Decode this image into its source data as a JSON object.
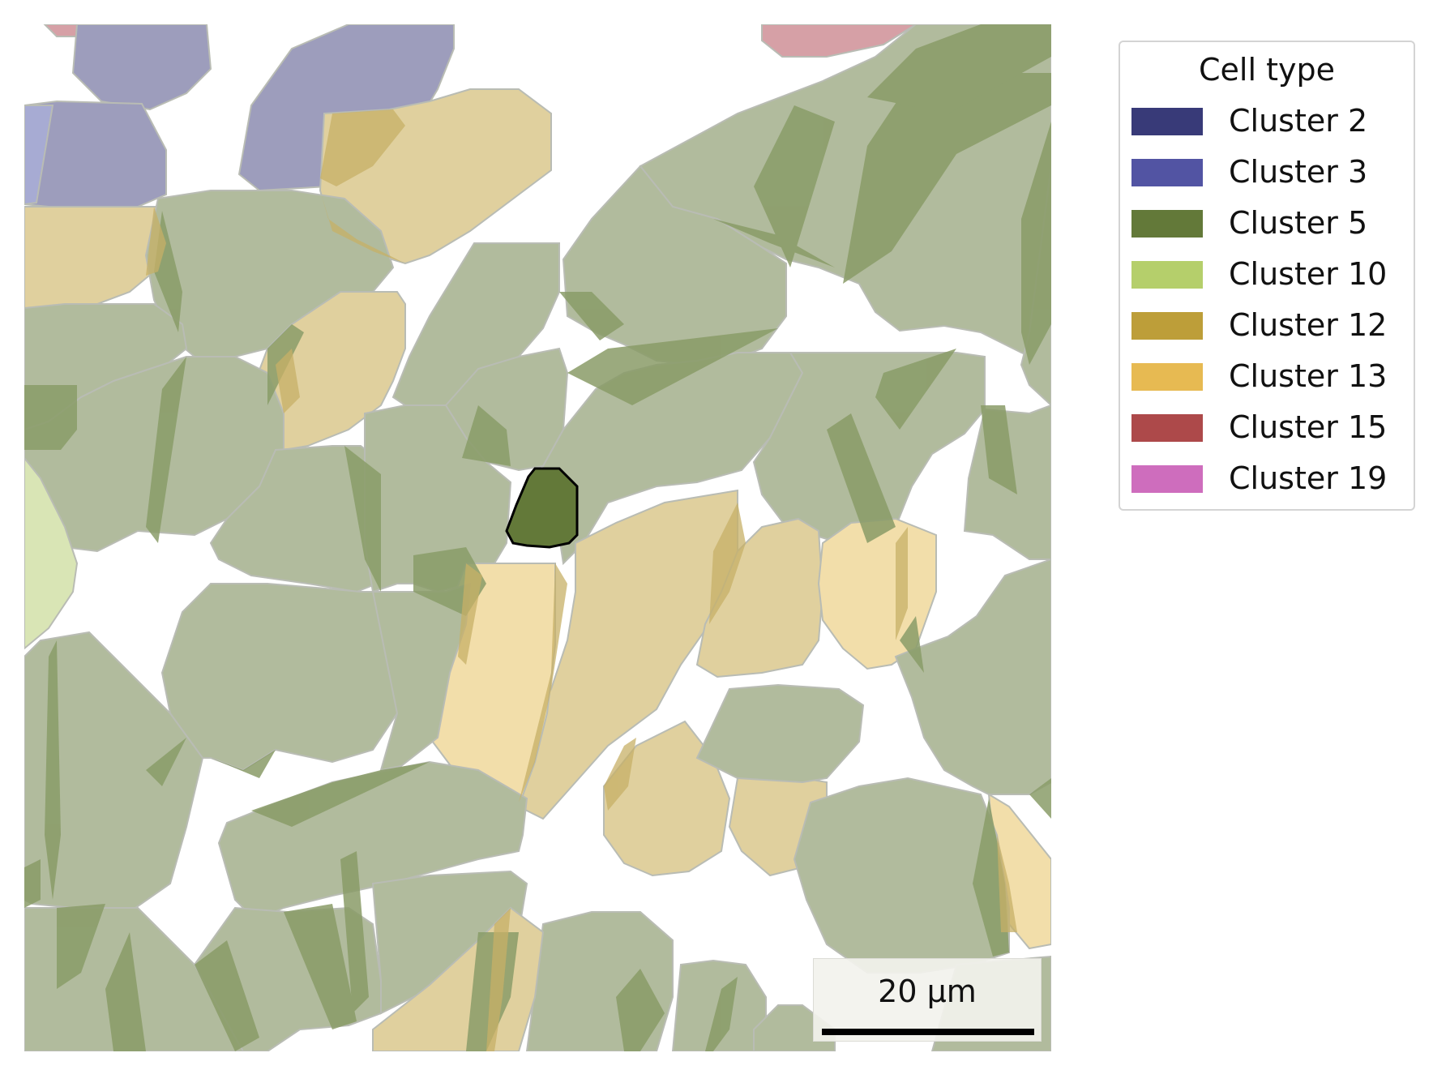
{
  "legend": {
    "title": "Cell type",
    "items": [
      {
        "label": "Cluster 2",
        "color": "#383a78"
      },
      {
        "label": "Cluster 3",
        "color": "#5254a3"
      },
      {
        "label": "Cluster 5",
        "color": "#637939"
      },
      {
        "label": "Cluster 10",
        "color": "#b5cf6b"
      },
      {
        "label": "Cluster 12",
        "color": "#bd9e39"
      },
      {
        "label": "Cluster 13",
        "color": "#e7ba52"
      },
      {
        "label": "Cluster 15",
        "color": "#ad494a"
      },
      {
        "label": "Cluster 19",
        "color": "#ce6dbd"
      }
    ]
  },
  "scalebar": {
    "label": "20 µm"
  },
  "highlighted_cell": {
    "cluster": "Cluster 5",
    "color": "#637939"
  }
}
